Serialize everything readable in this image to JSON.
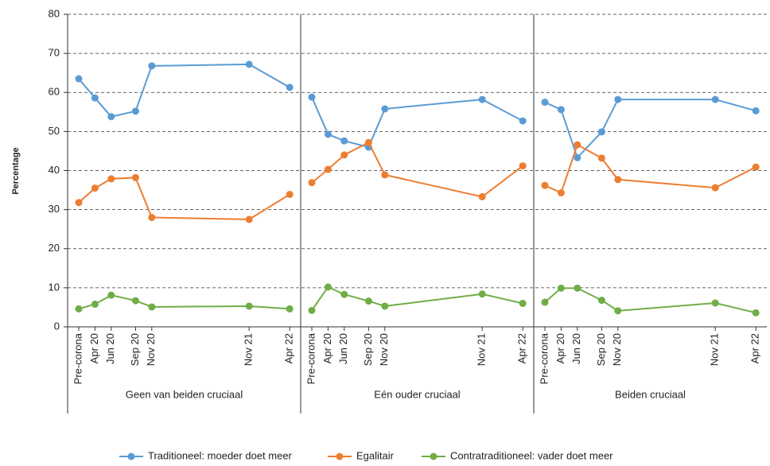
{
  "chart_data": {
    "type": "line",
    "y_label": "Percentage",
    "ylim": [
      0,
      80
    ],
    "yticks": [
      0,
      10,
      20,
      30,
      40,
      50,
      60,
      70,
      80
    ],
    "grid": true,
    "legend": "bottom",
    "panels": [
      "Geen van beiden cruciaal",
      "Eén ouder cruciaal",
      "Beiden cruciaal"
    ],
    "categories": [
      "Pre-corona",
      "Apr 20",
      "Jun 20",
      "Sep 20",
      "Nov 20",
      "Nov 21",
      "Apr 22"
    ],
    "series": [
      {
        "name": "Traditioneel: moeder doet meer",
        "color": "#5b9bd5",
        "values": [
          [
            63.5,
            58.6,
            53.8,
            55.2,
            66.8,
            67.2,
            61.3
          ],
          [
            58.8,
            49.3,
            47.6,
            46.0,
            55.8,
            58.2,
            52.7
          ],
          [
            57.5,
            55.6,
            43.3,
            49.9,
            58.2,
            58.2,
            55.3
          ]
        ]
      },
      {
        "name": "Egalitair",
        "color": "#ed7d31",
        "values": [
          [
            31.8,
            35.5,
            37.9,
            38.2,
            28.0,
            27.5,
            33.9
          ],
          [
            36.9,
            40.3,
            44.0,
            47.2,
            38.9,
            33.3,
            41.2
          ],
          [
            36.2,
            34.3,
            46.6,
            43.2,
            37.7,
            35.6,
            40.9
          ]
        ]
      },
      {
        "name": "Contratraditioneel: vader doet meer",
        "color": "#70ad47",
        "values": [
          [
            4.6,
            5.8,
            8.1,
            6.7,
            5.1,
            5.3,
            4.6
          ],
          [
            4.2,
            10.2,
            8.3,
            6.6,
            5.3,
            8.4,
            6.0
          ],
          [
            6.3,
            9.9,
            9.9,
            6.8,
            4.1,
            6.1,
            3.6
          ]
        ]
      }
    ]
  }
}
